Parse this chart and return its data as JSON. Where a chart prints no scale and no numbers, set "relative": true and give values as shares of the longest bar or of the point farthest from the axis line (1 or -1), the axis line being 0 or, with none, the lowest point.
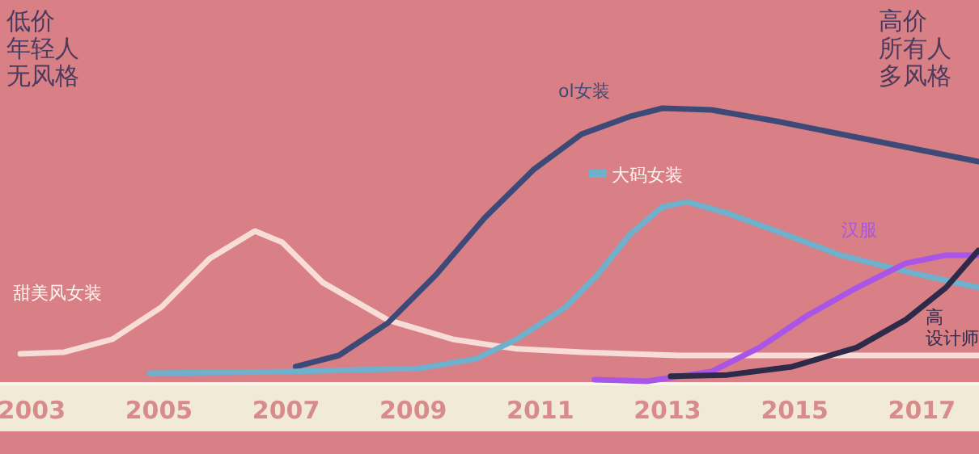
{
  "chart_data": {
    "type": "line",
    "relative": true,
    "grid": false,
    "marker": "none",
    "line_style": "solid",
    "xlim": [
      2002.5,
      2017.9
    ],
    "xticks": [
      2003,
      2005,
      2007,
      2009,
      2011,
      2013,
      2015,
      2017
    ],
    "annotations": [
      "低价",
      "年轻人",
      "无风格",
      "高价",
      "所有人",
      "多风格"
    ],
    "series": [
      {
        "name": "甜美风女装",
        "color": "#f8dcd6",
        "x": [
          2002.82,
          2003.51,
          2004.27,
          2005.04,
          2005.8,
          2006.51,
          2006.94,
          2007.58,
          2008.6,
          2009.62,
          2010.63,
          2011.65,
          2013.18,
          2015.21,
          2017.89
        ],
        "values": [
          0.106,
          0.112,
          0.159,
          0.276,
          0.453,
          0.553,
          0.512,
          0.365,
          0.229,
          0.159,
          0.124,
          0.112,
          0.1,
          0.1,
          0.1
        ]
      },
      {
        "name": "ol女装",
        "color": "#3d4a78",
        "x": [
          2007.15,
          2007.83,
          2008.6,
          2009.36,
          2010.12,
          2010.89,
          2011.65,
          2012.41,
          2012.92,
          2013.69,
          2014.71,
          2015.98,
          2017.0,
          2017.89
        ],
        "values": [
          0.059,
          0.1,
          0.218,
          0.394,
          0.6,
          0.776,
          0.906,
          0.97,
          1.0,
          0.994,
          0.953,
          0.894,
          0.847,
          0.806
        ]
      },
      {
        "name": "大码女装",
        "color": "#6fb0cc",
        "x": [
          2004.86,
          2007.07,
          2009.1,
          2009.99,
          2010.63,
          2011.4,
          2011.9,
          2012.41,
          2012.92,
          2013.31,
          2013.94,
          2014.71,
          2015.72,
          2016.74,
          2017.89
        ],
        "values": [
          0.035,
          0.041,
          0.053,
          0.088,
          0.159,
          0.276,
          0.394,
          0.541,
          0.641,
          0.659,
          0.618,
          0.553,
          0.465,
          0.406,
          0.347
        ]
      },
      {
        "name": "汉服",
        "color": "#a855e8",
        "x": [
          2011.85,
          2012.67,
          2013.69,
          2014.45,
          2015.21,
          2015.98,
          2016.74,
          2017.38,
          2017.89
        ],
        "values": [
          0.012,
          0.006,
          0.041,
          0.129,
          0.247,
          0.347,
          0.435,
          0.465,
          0.465
        ]
      },
      {
        "name": "高设计师",
        "color": "#2e2a4a",
        "x": [
          2013.05,
          2013.94,
          2014.96,
          2015.98,
          2016.74,
          2017.38,
          2017.89
        ],
        "values": [
          0.024,
          0.029,
          0.059,
          0.129,
          0.229,
          0.347,
          0.482
        ]
      }
    ]
  }
}
